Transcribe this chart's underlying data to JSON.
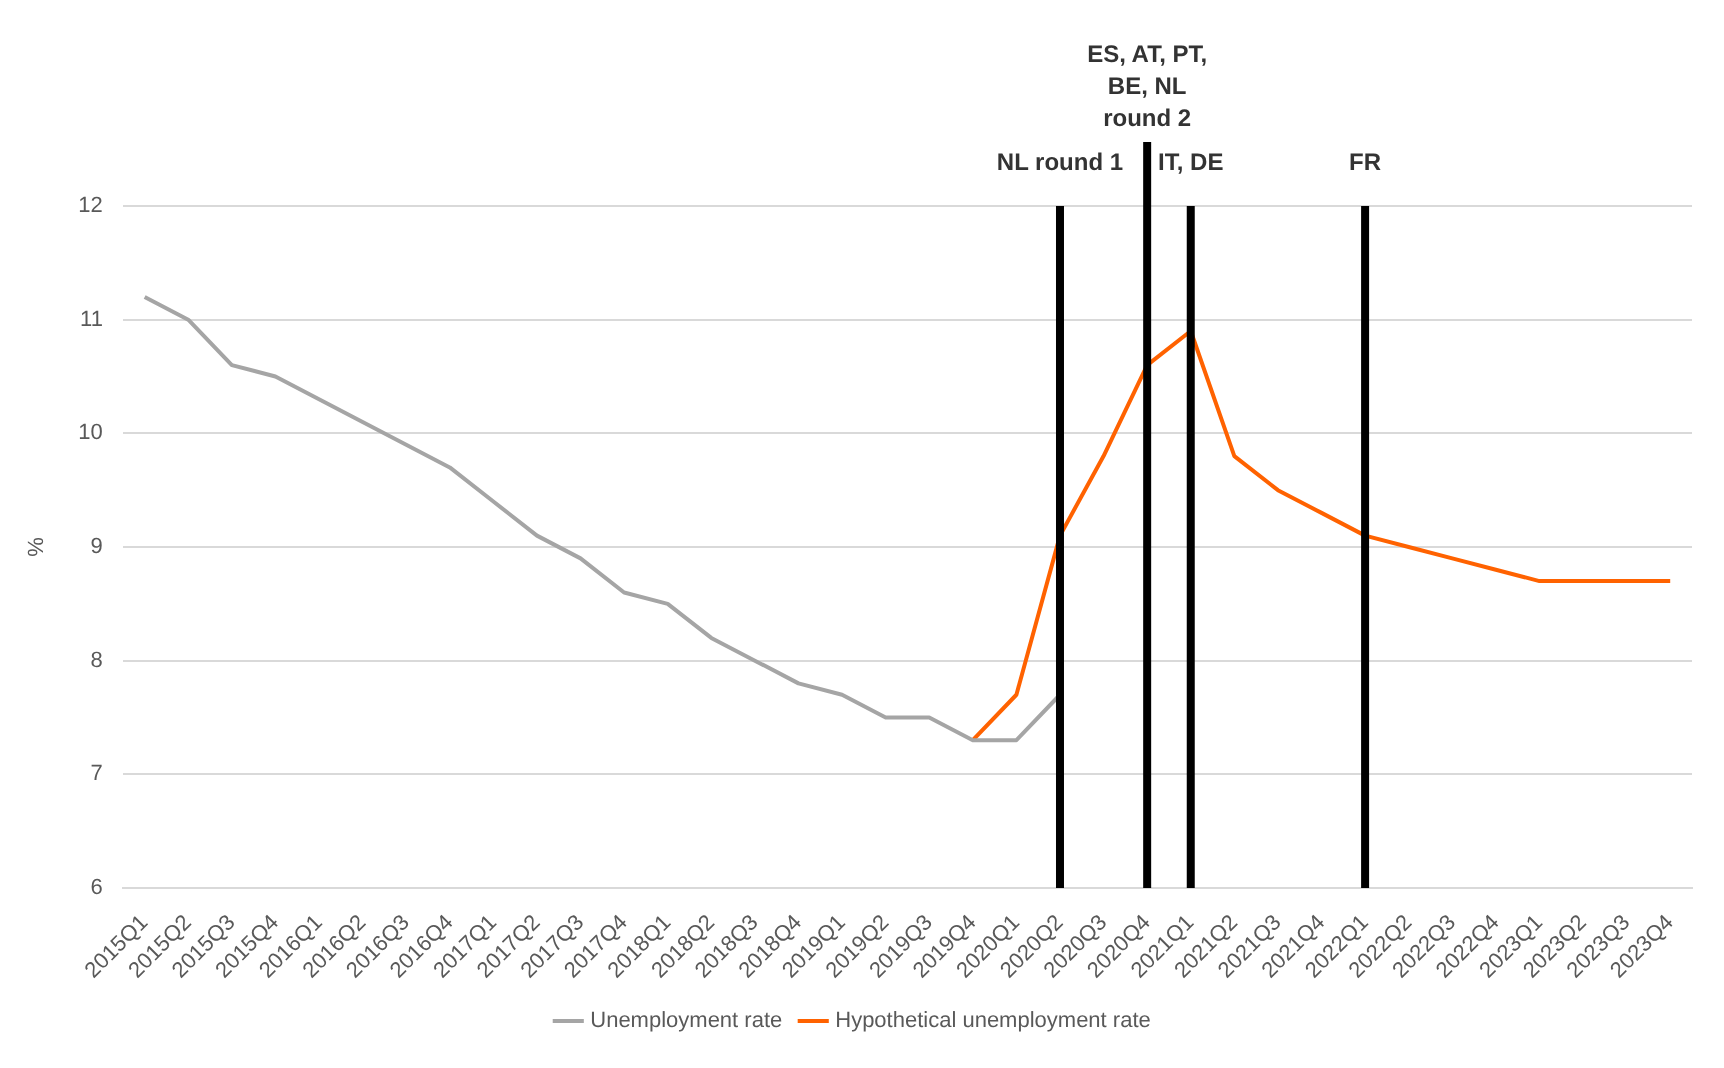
{
  "chart_data": {
    "type": "line",
    "ylabel": "%",
    "categories": [
      "2015Q1",
      "2015Q2",
      "2015Q3",
      "2015Q4",
      "2016Q1",
      "2016Q2",
      "2016Q3",
      "2016Q4",
      "2017Q1",
      "2017Q2",
      "2017Q3",
      "2017Q4",
      "2018Q1",
      "2018Q2",
      "2018Q3",
      "2018Q4",
      "2019Q1",
      "2019Q2",
      "2019Q3",
      "2019Q4",
      "2020Q1",
      "2020Q2",
      "2020Q3",
      "2020Q4",
      "2021Q1",
      "2021Q2",
      "2021Q3",
      "2021Q4",
      "2022Q1",
      "2022Q2",
      "2022Q3",
      "2022Q4",
      "2023Q1",
      "2023Q2",
      "2023Q3",
      "2023Q4"
    ],
    "series": [
      {
        "name": "Unemployment rate",
        "color": "#a5a5a5",
        "values": [
          11.2,
          11.0,
          10.6,
          10.5,
          10.3,
          10.1,
          9.9,
          9.7,
          9.4,
          9.1,
          8.9,
          8.6,
          8.5,
          8.2,
          8.0,
          7.8,
          7.7,
          7.5,
          7.5,
          7.3,
          7.3,
          7.7,
          null,
          null,
          null,
          null,
          null,
          null,
          null,
          null,
          null,
          null,
          null,
          null,
          null,
          null
        ]
      },
      {
        "name": "Hypothetical unemployment rate",
        "color": "#ff6200",
        "values": [
          null,
          null,
          null,
          null,
          null,
          null,
          null,
          null,
          null,
          null,
          null,
          null,
          null,
          null,
          null,
          null,
          null,
          null,
          null,
          7.3,
          7.7,
          9.1,
          9.8,
          10.6,
          10.9,
          9.8,
          9.5,
          9.3,
          9.1,
          9.0,
          8.9,
          8.8,
          8.7,
          8.7,
          8.7,
          8.7
        ]
      }
    ],
    "ylim": [
      6,
      12
    ],
    "yticks": [
      6,
      7,
      8,
      9,
      10,
      11,
      12
    ],
    "grid": "y",
    "legend": "bottom",
    "marker": "none",
    "line_style": "solid",
    "ref_lines": [
      {
        "axis": "x",
        "value": "2020Q2",
        "label": "NL round 1",
        "color": "#000000"
      },
      {
        "axis": "x",
        "value": "2020Q4",
        "label": "ES, AT, PT, BE, NL round 2",
        "color": "#000000"
      },
      {
        "axis": "x",
        "value": "2021Q1",
        "label": "IT, DE",
        "color": "#000000"
      },
      {
        "axis": "x",
        "value": "2022Q1",
        "label": "FR",
        "color": "#000000"
      }
    ]
  }
}
